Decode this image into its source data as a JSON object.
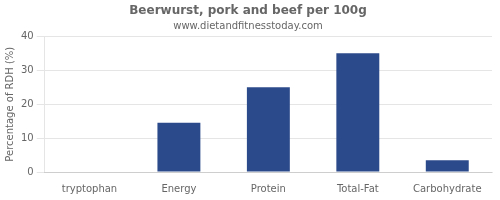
{
  "chart_data": {
    "type": "bar",
    "title": "Beerwurst, pork and beef per 100g",
    "subtitle": "www.dietandfitnesstoday.com",
    "categories": [
      "tryptophan",
      "Energy",
      "Protein",
      "Total-Fat",
      "Carbohydrate"
    ],
    "values": [
      0,
      14.5,
      25,
      35,
      3.5
    ],
    "color": "#2b4a8b",
    "ylabel": "Percentage of RDH (%)",
    "ylim": [
      0,
      40
    ],
    "yticks": [
      0,
      10,
      20,
      30,
      40
    ],
    "grid": true
  }
}
